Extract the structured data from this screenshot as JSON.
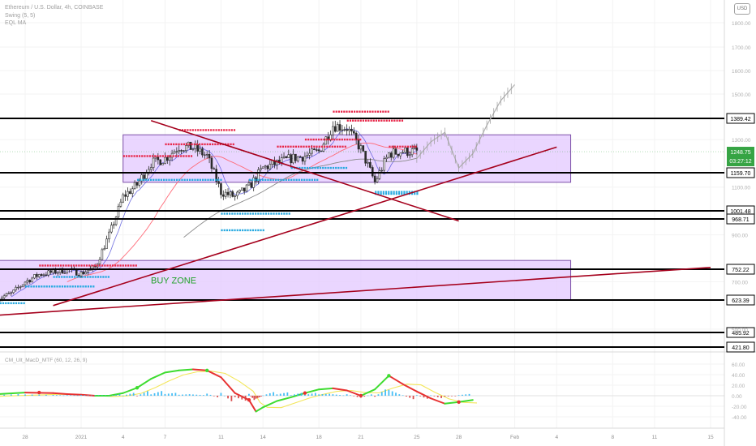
{
  "legend": {
    "symbol": "Ethereum / U.S. Dollar, 4h, COINBASE",
    "indicator_1": "Swing (5, 5)",
    "indicator_2": "EQL MA"
  },
  "currency_button": "USD",
  "colors": {
    "candle": "#2b2b2b",
    "resistance_dots": "#e8294b",
    "support_dots": "#27a9e0",
    "zone_fill": "#e3c8ff",
    "zone_border": "#7b4fa8",
    "trendline": "#a5001c",
    "ma_red": "#ff6b78",
    "ma_grey": "#8a8a8a",
    "macd_green": "#3ddc2f",
    "macd_red": "#e73131",
    "macd_yellow": "#f3e65a",
    "hist_blue": "#31b7f5",
    "hist_red": "#d63c3c",
    "price_tag_green": "#36a444"
  },
  "chart_data": {
    "type": "candlestick",
    "symbol": "Ethereum / U.S. Dollar",
    "timeframe": "4h",
    "exchange": "COINBASE",
    "y_axis_ticks": [
      1800,
      1700,
      1600,
      1500,
      1300,
      1100,
      900,
      700,
      500
    ],
    "price_axis_labels": [
      "1800.00",
      "1700.00",
      "1600.00",
      "1500.00",
      "1300.00",
      "1100.00",
      "900.00",
      "700.00",
      "500.00"
    ],
    "levels": [
      {
        "value": 1389.42,
        "label": "1389.42"
      },
      {
        "value": 1159.7,
        "label": "1159.70"
      },
      {
        "value": 1001.48,
        "label": "1001.48"
      },
      {
        "value": 968.71,
        "label": "968.71"
      },
      {
        "value": 752.22,
        "label": "752.22"
      },
      {
        "value": 623.39,
        "label": "623.39"
      },
      {
        "value": 485.92,
        "label": "485.92"
      },
      {
        "value": 421.8,
        "label": "421.80"
      }
    ],
    "current_price": {
      "value": 1248.75,
      "label": "1248.75",
      "countdown": "03:27:12"
    },
    "x_axis_ticks": [
      "28",
      "2021",
      "4",
      "7",
      "11",
      "14",
      "18",
      "21",
      "25",
      "28",
      "Feb",
      "4",
      "8",
      "11",
      "15"
    ],
    "zones": [
      {
        "label": "",
        "from_date": "Jan 4",
        "to_date": "Feb 5",
        "low": 1120,
        "high": 1320
      },
      {
        "label": "BUY ZONE",
        "from_date": "Dec 25",
        "to_date": "Feb 5",
        "low": 623.39,
        "high": 790
      }
    ],
    "trendlines": [
      {
        "from": [
          "Jan 6",
          1380
        ],
        "to": [
          "Jan 28",
          960
        ]
      },
      {
        "from": [
          "Dec 30",
          600
        ],
        "to": [
          "Feb 4",
          1268
        ]
      },
      {
        "from": [
          "Dec 25",
          555
        ],
        "to": [
          "Feb 15",
          760
        ]
      }
    ],
    "candles_close_sampled": [
      [
        "Dec 26",
        630
      ],
      [
        "Dec 27",
        650
      ],
      [
        "Dec 28",
        700
      ],
      [
        "Dec 29",
        730
      ],
      [
        "Dec 30",
        740
      ],
      [
        "Dec 31",
        750
      ],
      [
        "Jan 1",
        735
      ],
      [
        "Jan 2",
        760
      ],
      [
        "Jan 3",
        900
      ],
      [
        "Jan 4",
        1060
      ],
      [
        "Jan 5",
        1110
      ],
      [
        "Jan 6",
        1200
      ],
      [
        "Jan 7",
        1220
      ],
      [
        "Jan 8",
        1270
      ],
      [
        "Jan 9",
        1265
      ],
      [
        "Jan 10",
        1230
      ],
      [
        "Jan 11",
        1080
      ],
      [
        "Jan 12",
        1060
      ],
      [
        "Jan 13",
        1100
      ],
      [
        "Jan 14",
        1180
      ],
      [
        "Jan 15",
        1200
      ],
      [
        "Jan 16",
        1220
      ],
      [
        "Jan 17",
        1230
      ],
      [
        "Jan 18",
        1250
      ],
      [
        "Jan 19",
        1360
      ],
      [
        "Jan 20",
        1350
      ],
      [
        "Jan 21",
        1260
      ],
      [
        "Jan 22",
        1120
      ],
      [
        "Jan 23",
        1240
      ],
      [
        "Jan 24",
        1250
      ],
      [
        "Jan 25",
        1248.75
      ]
    ],
    "projection": [
      [
        "Jan 25",
        1220
      ],
      [
        "Jan 26",
        1290
      ],
      [
        "Jan 27",
        1330
      ],
      [
        "Jan 28",
        1180
      ],
      [
        "Jan 29",
        1240
      ],
      [
        "Jan 30",
        1360
      ],
      [
        "Jan 31",
        1470
      ],
      [
        "Feb 1",
        1540
      ]
    ],
    "oscillator": {
      "name": "CM_Ult_MacD_MTF (60, 12, 26, 9)",
      "y_ticks": [
        60,
        40,
        20,
        0,
        -20,
        -40
      ],
      "y_tick_labels": [
        "60.00",
        "40.00",
        "20.00",
        "0.00",
        "-20.00",
        "-40.00"
      ]
    }
  }
}
